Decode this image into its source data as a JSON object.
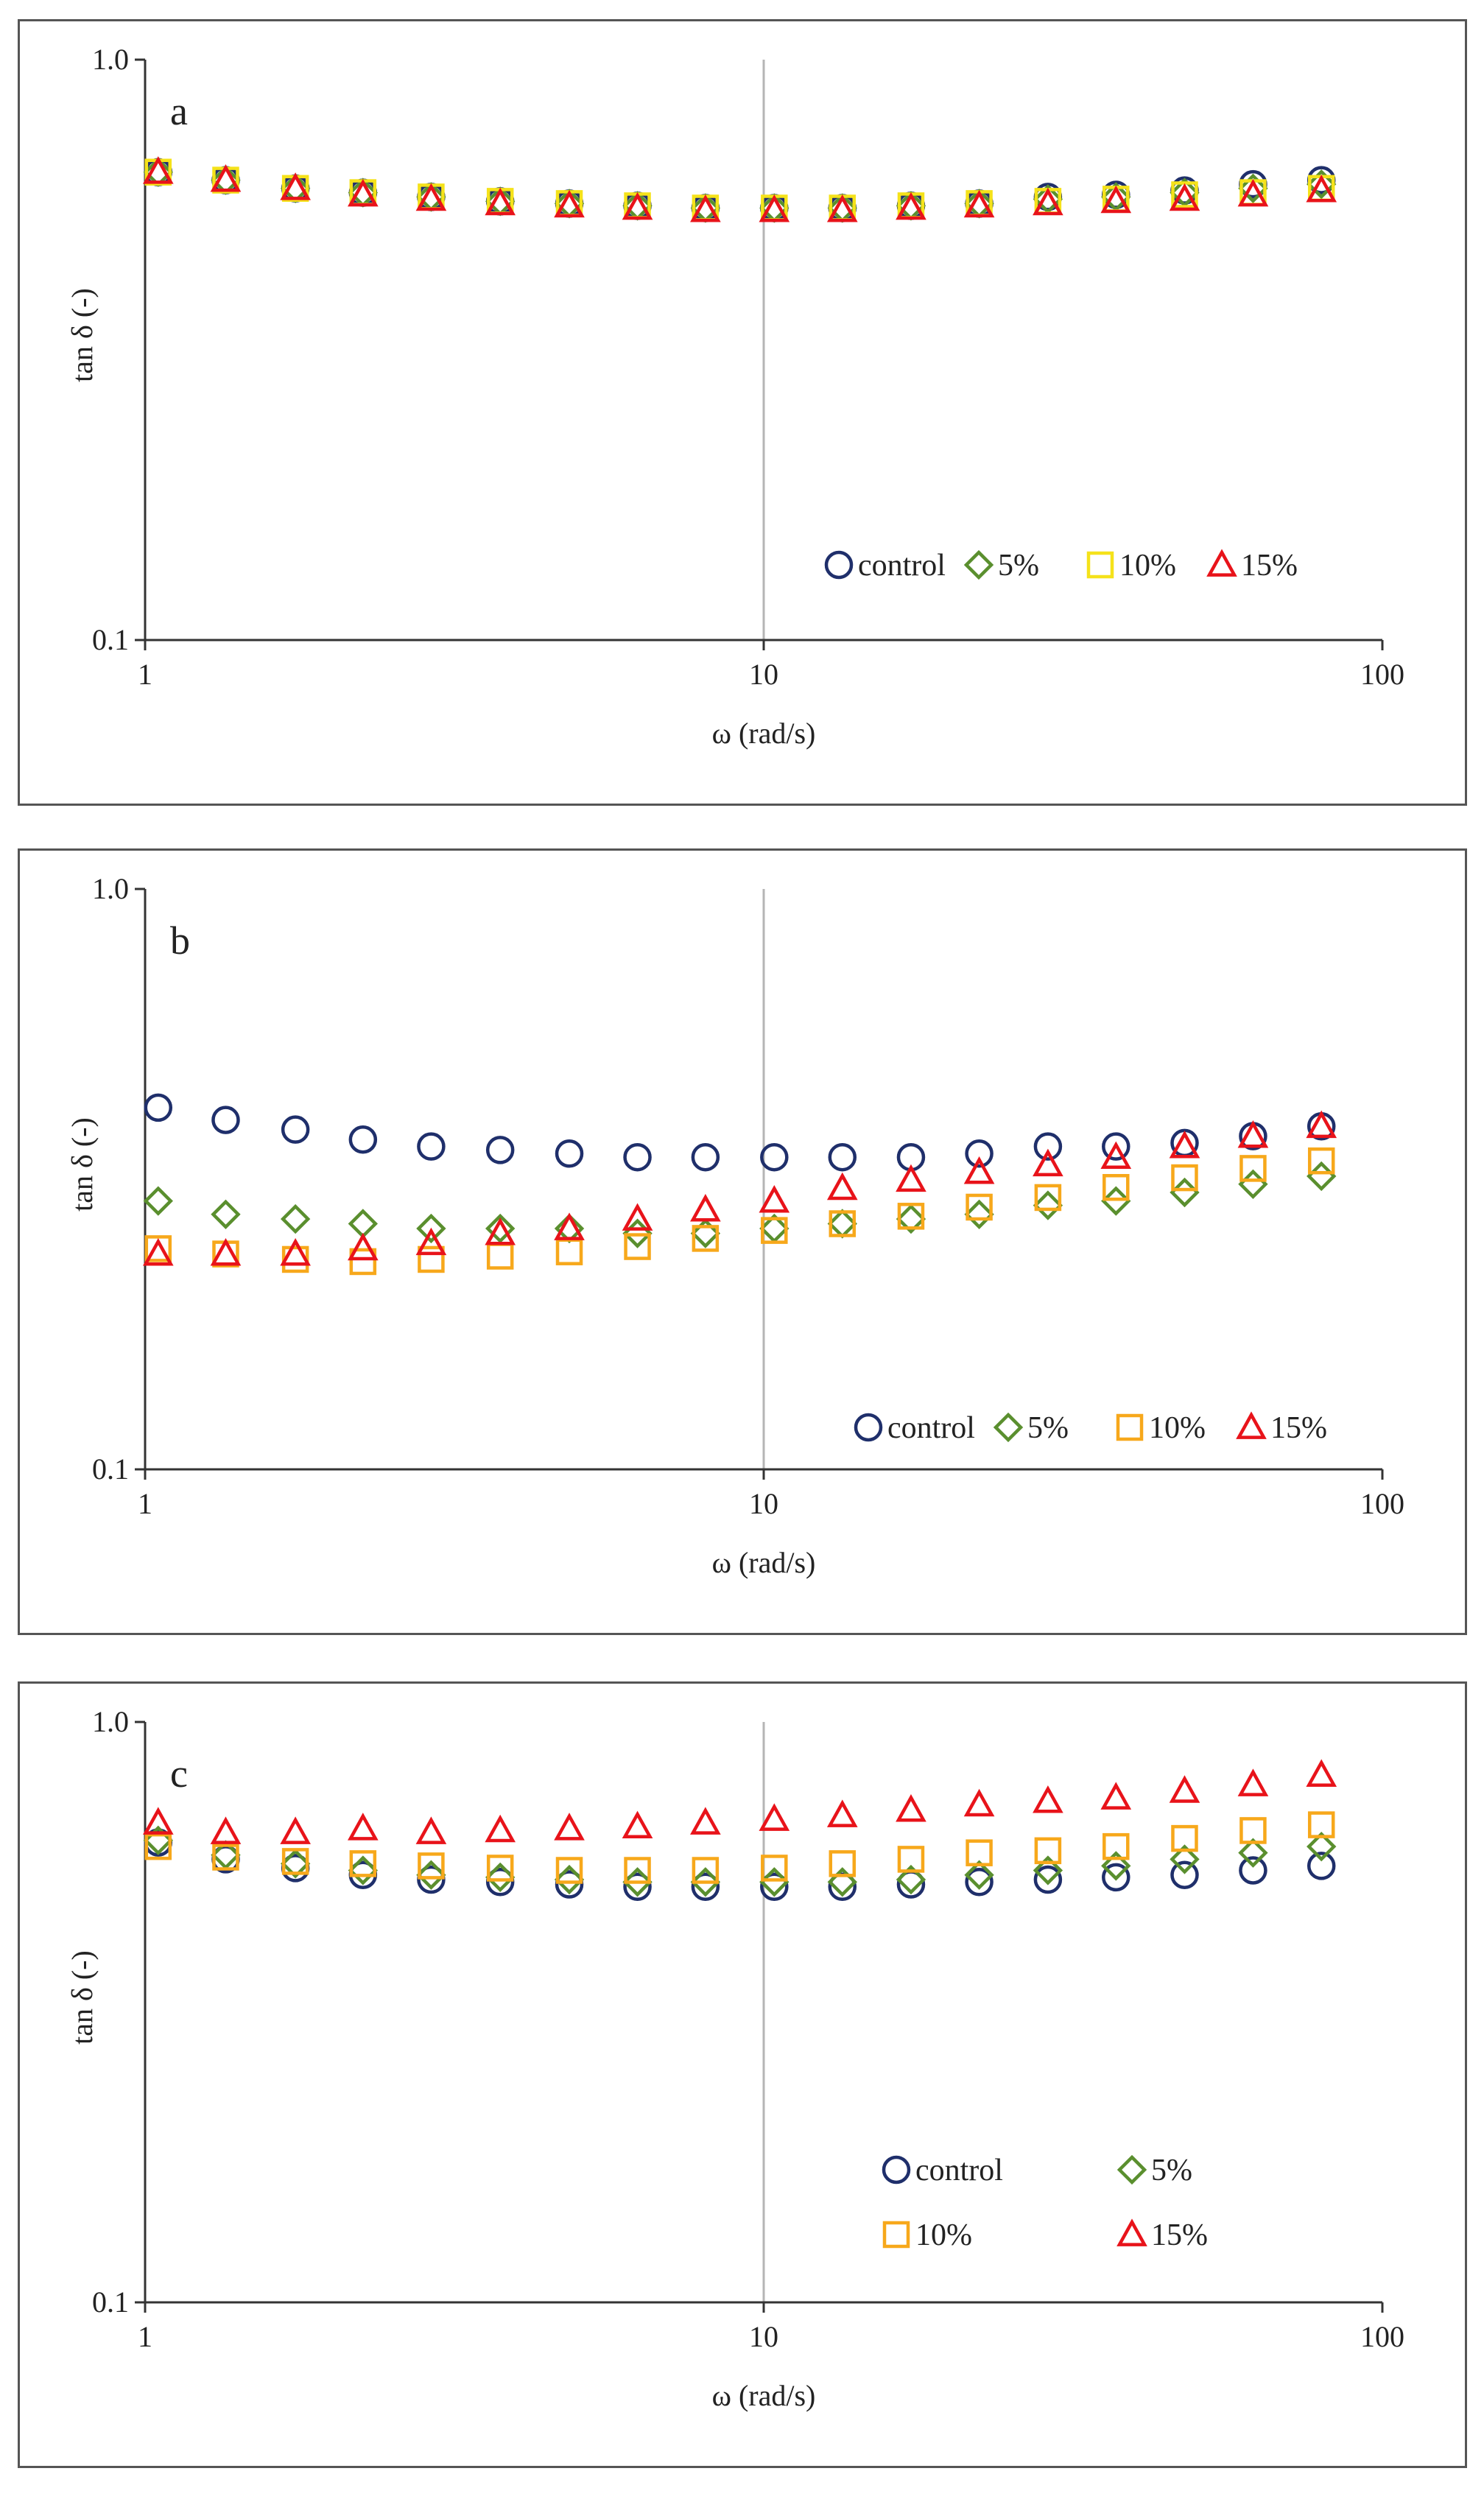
{
  "chart_data": [
    {
      "type": "scatter",
      "panel_label": "a",
      "xlabel": "ω (rad/s)",
      "ylabel": "tan δ (-)",
      "x_scale": "log",
      "y_scale": "log",
      "xlim": [
        1,
        100
      ],
      "ylim": [
        0.1,
        1.0
      ],
      "x_ticks": [
        "1",
        "10",
        "100"
      ],
      "y_ticks": [
        "0.1",
        "1.0"
      ],
      "vertical_reference_line": 10,
      "legend_position": "bottom-right",
      "x": [
        1.05,
        1.35,
        1.75,
        2.25,
        2.9,
        3.75,
        4.85,
        6.25,
        8.05,
        10.4,
        13.4,
        17.3,
        22.3,
        28.8,
        37.1,
        47.9,
        61.8,
        79.7
      ],
      "series": [
        {
          "name": "control",
          "marker": "circle",
          "color": "#1f2f6b",
          "values": [
            0.64,
            0.62,
            0.6,
            0.59,
            0.58,
            0.57,
            0.565,
            0.56,
            0.555,
            0.555,
            0.555,
            0.56,
            0.565,
            0.58,
            0.585,
            0.595,
            0.61,
            0.62
          ]
        },
        {
          "name": "5%",
          "marker": "diamond",
          "color": "#5a8f2e",
          "values": [
            0.64,
            0.62,
            0.6,
            0.59,
            0.58,
            0.57,
            0.565,
            0.56,
            0.555,
            0.555,
            0.555,
            0.56,
            0.565,
            0.575,
            0.58,
            0.59,
            0.6,
            0.61
          ]
        },
        {
          "name": "10%",
          "marker": "square",
          "color": "#f5e21a",
          "values": [
            0.64,
            0.62,
            0.6,
            0.59,
            0.58,
            0.57,
            0.565,
            0.56,
            0.555,
            0.555,
            0.555,
            0.56,
            0.565,
            0.57,
            0.575,
            0.585,
            0.59,
            0.6
          ]
        },
        {
          "name": "15%",
          "marker": "triangle",
          "color": "#e8131a",
          "values": [
            0.64,
            0.62,
            0.6,
            0.585,
            0.575,
            0.565,
            0.56,
            0.555,
            0.55,
            0.55,
            0.55,
            0.555,
            0.56,
            0.565,
            0.57,
            0.575,
            0.585,
            0.595
          ]
        }
      ],
      "legend": {
        "layout": "row",
        "order": [
          "control",
          "5%",
          "10%",
          "15%"
        ]
      }
    },
    {
      "type": "scatter",
      "panel_label": "b",
      "xlabel": "ω (rad/s)",
      "ylabel": "tan δ (-)",
      "x_scale": "log",
      "y_scale": "log",
      "xlim": [
        1,
        100
      ],
      "ylim": [
        0.1,
        1.0
      ],
      "x_ticks": [
        "1",
        "10",
        "100"
      ],
      "y_ticks": [
        "0.1",
        "1.0"
      ],
      "vertical_reference_line": 10,
      "legend_position": "bottom-right",
      "x": [
        1.05,
        1.35,
        1.75,
        2.25,
        2.9,
        3.75,
        4.85,
        6.25,
        8.05,
        10.4,
        13.4,
        17.3,
        22.3,
        28.8,
        37.1,
        47.9,
        61.8,
        79.7
      ],
      "series": [
        {
          "name": "control",
          "marker": "circle",
          "color": "#1f2f6b",
          "values": [
            0.42,
            0.4,
            0.385,
            0.37,
            0.36,
            0.355,
            0.35,
            0.345,
            0.345,
            0.345,
            0.345,
            0.345,
            0.35,
            0.36,
            0.36,
            0.365,
            0.375,
            0.39
          ]
        },
        {
          "name": "5%",
          "marker": "diamond",
          "color": "#5a8f2e",
          "values": [
            0.29,
            0.275,
            0.27,
            0.265,
            0.26,
            0.26,
            0.26,
            0.255,
            0.255,
            0.26,
            0.265,
            0.27,
            0.275,
            0.285,
            0.29,
            0.3,
            0.31,
            0.32
          ]
        },
        {
          "name": "10%",
          "marker": "square",
          "color": "#f7a81b",
          "values": [
            0.24,
            0.235,
            0.23,
            0.228,
            0.23,
            0.233,
            0.237,
            0.242,
            0.25,
            0.258,
            0.265,
            0.273,
            0.283,
            0.294,
            0.306,
            0.318,
            0.33,
            0.34
          ]
        },
        {
          "name": "15%",
          "marker": "triangle",
          "color": "#e8131a",
          "values": [
            0.235,
            0.235,
            0.235,
            0.24,
            0.245,
            0.255,
            0.26,
            0.27,
            0.28,
            0.29,
            0.305,
            0.315,
            0.325,
            0.335,
            0.345,
            0.36,
            0.375,
            0.39
          ]
        }
      ],
      "legend": {
        "layout": "row",
        "order": [
          "control",
          "5%",
          "10%",
          "15%"
        ]
      }
    },
    {
      "type": "scatter",
      "panel_label": "c",
      "xlabel": "ω (rad/s)",
      "ylabel": "tan δ (-)",
      "x_scale": "log",
      "y_scale": "log",
      "xlim": [
        1,
        100
      ],
      "ylim": [
        0.1,
        1.0
      ],
      "x_ticks": [
        "1",
        "10",
        "100"
      ],
      "y_ticks": [
        "0.1",
        "1.0"
      ],
      "vertical_reference_line": 10,
      "legend_position": "bottom-right",
      "x": [
        1.05,
        1.35,
        1.75,
        2.25,
        2.9,
        3.75,
        4.85,
        6.25,
        8.05,
        10.4,
        13.4,
        17.3,
        22.3,
        28.8,
        37.1,
        47.9,
        61.8,
        79.7
      ],
      "series": [
        {
          "name": "control",
          "marker": "circle",
          "color": "#1f2f6b",
          "values": [
            0.62,
            0.58,
            0.56,
            0.545,
            0.535,
            0.53,
            0.525,
            0.52,
            0.52,
            0.52,
            0.52,
            0.525,
            0.53,
            0.535,
            0.54,
            0.545,
            0.555,
            0.565
          ]
        },
        {
          "name": "5%",
          "marker": "diamond",
          "color": "#5a8f2e",
          "values": [
            0.625,
            0.59,
            0.57,
            0.555,
            0.545,
            0.54,
            0.535,
            0.53,
            0.53,
            0.53,
            0.53,
            0.535,
            0.545,
            0.555,
            0.565,
            0.58,
            0.595,
            0.61
          ]
        },
        {
          "name": "10%",
          "marker": "square",
          "color": "#f7a81b",
          "values": [
            0.61,
            0.585,
            0.575,
            0.57,
            0.565,
            0.56,
            0.555,
            0.555,
            0.555,
            0.56,
            0.57,
            0.58,
            0.595,
            0.6,
            0.61,
            0.63,
            0.65,
            0.665
          ]
        },
        {
          "name": "15%",
          "marker": "triangle",
          "color": "#e8131a",
          "values": [
            0.67,
            0.645,
            0.645,
            0.655,
            0.645,
            0.65,
            0.655,
            0.66,
            0.67,
            0.68,
            0.69,
            0.705,
            0.72,
            0.73,
            0.74,
            0.76,
            0.78,
            0.81
          ]
        }
      ],
      "legend": {
        "layout": "grid",
        "order": [
          "control",
          "5%",
          "10%",
          "15%"
        ]
      }
    }
  ]
}
